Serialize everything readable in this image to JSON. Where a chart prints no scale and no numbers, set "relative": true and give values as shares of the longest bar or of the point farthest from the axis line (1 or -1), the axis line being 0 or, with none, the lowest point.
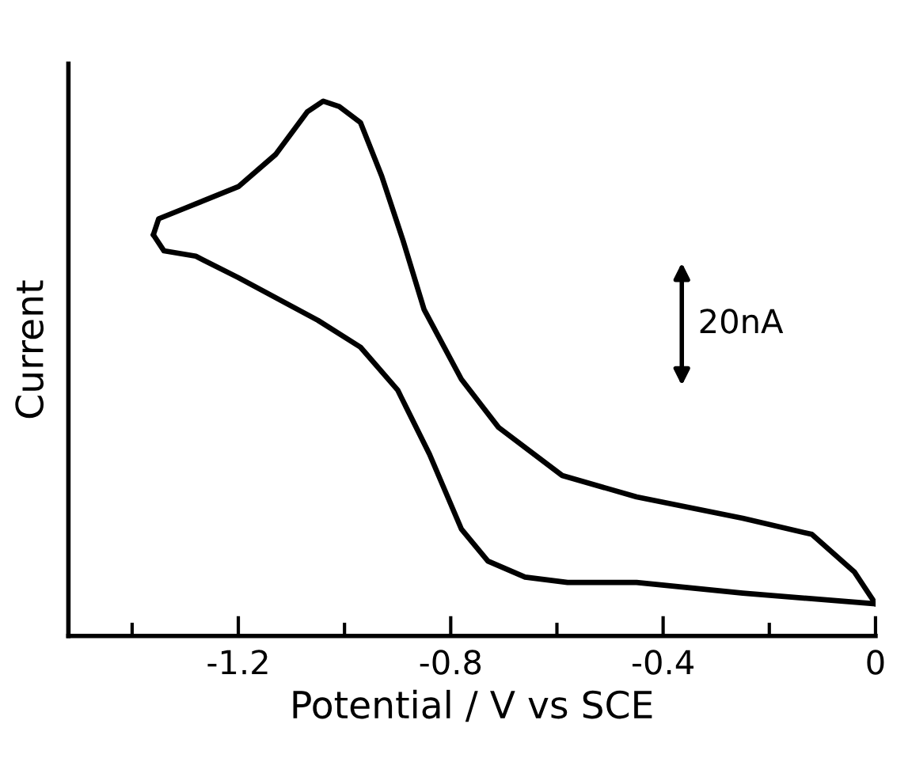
{
  "chart_data": {
    "type": "line",
    "relative": true,
    "xlabel": "Potential / V vs SCE",
    "ylabel": "Current",
    "xlim": [
      -1.52,
      0
    ],
    "xticks": [
      {
        "value": -1.4,
        "label": null
      },
      -1.2,
      {
        "value": -1.0,
        "label": null
      },
      -0.8,
      {
        "value": -0.6,
        "label": null
      },
      -0.4,
      {
        "value": -0.2,
        "label": null
      },
      0
    ],
    "tick_labels": "x",
    "grid": false,
    "legend": false,
    "marker": "none",
    "line_style": "solid",
    "annotations": [
      "20nA"
    ],
    "series": [
      {
        "color": "#000000",
        "x": [
          0.0,
          -0.04,
          -0.12,
          -0.25,
          -0.45,
          -0.59,
          -0.71,
          -0.78,
          -0.85,
          -0.89,
          -0.93,
          -0.97,
          -1.01,
          -1.04,
          -1.07,
          -1.13,
          -1.2,
          -1.3,
          -1.35,
          -1.36
        ],
        "values": [
          0.06,
          0.12,
          0.19,
          0.22,
          0.26,
          0.3,
          0.39,
          0.48,
          0.61,
          0.74,
          0.86,
          0.96,
          0.99,
          1.0,
          0.98,
          0.9,
          0.84,
          0.8,
          0.78,
          0.75
        ]
      },
      {
        "color": "#000000",
        "x": [
          -1.36,
          -1.34,
          -1.28,
          -1.2,
          -1.05,
          -0.97,
          -0.9,
          -0.84,
          -0.78,
          -0.73,
          -0.66,
          -0.58,
          -0.45,
          -0.25,
          0.0
        ],
        "values": [
          0.75,
          0.72,
          0.71,
          0.67,
          0.59,
          0.54,
          0.46,
          0.34,
          0.2,
          0.14,
          0.11,
          0.1,
          0.1,
          0.08,
          0.06
        ]
      }
    ]
  }
}
